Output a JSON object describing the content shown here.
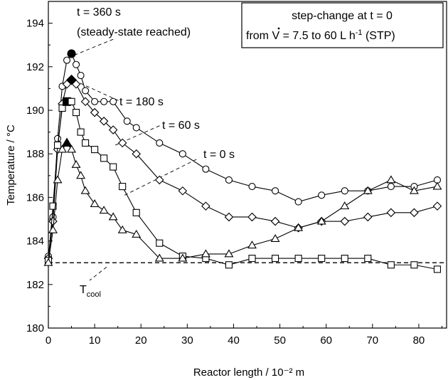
{
  "chart_data": {
    "type": "line",
    "xlabel": "Reactor length / 10⁻² m",
    "ylabel": "Temperature / °C",
    "xlim": [
      0,
      86
    ],
    "ylim": [
      180,
      195
    ],
    "x_ticks": [
      0,
      10,
      20,
      30,
      40,
      50,
      60,
      70,
      80
    ],
    "y_ticks": [
      180,
      182,
      184,
      186,
      188,
      190,
      192,
      194
    ],
    "grid": false,
    "legend_box": {
      "line1": "step-change at t = 0",
      "line2_prefix": "from ",
      "line2_symbol": "V",
      "line2_mid": " = 7.5 to 60 L h",
      "line2_exp": "-1",
      "line2_suffix": " (STP)"
    },
    "reference_line": {
      "value": 183.0,
      "label_main": "T",
      "label_sub": "cool",
      "style": "dashed"
    },
    "annotations": [
      {
        "line1": "t = 360 s",
        "line2": "(steady-state reached)"
      },
      {
        "line1": "t = 180 s"
      },
      {
        "line1": "t = 60 s"
      },
      {
        "line1": "t = 0 s"
      }
    ],
    "series": [
      {
        "marker": "circle",
        "x": [
          0,
          1,
          2,
          3,
          4,
          5,
          6,
          7,
          8,
          10,
          12,
          14,
          17,
          19,
          24,
          29,
          34,
          39,
          44,
          49,
          54,
          59,
          64,
          69,
          74,
          79,
          84
        ],
        "y": [
          183.3,
          185.1,
          188.7,
          191.1,
          192.3,
          192.6,
          192.1,
          191.6,
          190.9,
          190.4,
          190.4,
          190.4,
          189.5,
          189.2,
          188.5,
          188.0,
          187.3,
          186.8,
          186.5,
          186.3,
          185.8,
          186.1,
          186.3,
          186.3,
          186.5,
          186.5,
          186.8
        ],
        "peak": {
          "x": 5,
          "y": 192.6,
          "filled": true
        }
      },
      {
        "marker": "diamond",
        "x": [
          0,
          1,
          2,
          3,
          4,
          5,
          6,
          8,
          10,
          12,
          14,
          16,
          19,
          24,
          29,
          34,
          39,
          44,
          49,
          54,
          59,
          64,
          69,
          74,
          79,
          84
        ],
        "y": [
          183.2,
          184.9,
          188.2,
          190.3,
          191.2,
          191.4,
          191.2,
          190.4,
          189.9,
          189.5,
          189.1,
          188.5,
          188.0,
          186.8,
          186.3,
          185.6,
          185.1,
          185.1,
          184.9,
          184.6,
          184.9,
          184.9,
          185.1,
          185.3,
          185.3,
          185.6
        ],
        "peak": {
          "x": 5,
          "y": 191.4,
          "filled": true
        }
      },
      {
        "marker": "square",
        "x": [
          0,
          1,
          2,
          3,
          4,
          5,
          6,
          7,
          8,
          10,
          12,
          14,
          16,
          19,
          24,
          29,
          34,
          39,
          44,
          49,
          54,
          59,
          64,
          69,
          74,
          79,
          84
        ],
        "y": [
          183.1,
          185.6,
          188.4,
          190.1,
          190.4,
          190.4,
          189.9,
          189.0,
          188.5,
          188.2,
          187.8,
          187.4,
          186.5,
          185.3,
          183.9,
          183.3,
          183.2,
          182.9,
          183.2,
          183.2,
          183.2,
          183.2,
          183.2,
          183.2,
          182.9,
          182.9,
          182.7
        ],
        "peak": {
          "x": 4,
          "y": 190.4,
          "filled": true
        }
      },
      {
        "marker": "triangle",
        "x": [
          0,
          1,
          2,
          3,
          4,
          5,
          6,
          7,
          8,
          10,
          12,
          14,
          16,
          19,
          24,
          29,
          34,
          39,
          44,
          49,
          54,
          59,
          64,
          69,
          74,
          79,
          84
        ],
        "y": [
          183.0,
          184.5,
          186.8,
          188.2,
          188.5,
          188.2,
          187.5,
          187.0,
          186.3,
          185.7,
          185.4,
          185.1,
          184.5,
          184.3,
          183.2,
          183.2,
          183.4,
          183.4,
          183.8,
          184.1,
          184.6,
          184.9,
          185.6,
          186.3,
          186.8,
          186.3,
          186.5
        ],
        "peak": {
          "x": 4,
          "y": 188.5,
          "filled": true
        }
      }
    ]
  }
}
